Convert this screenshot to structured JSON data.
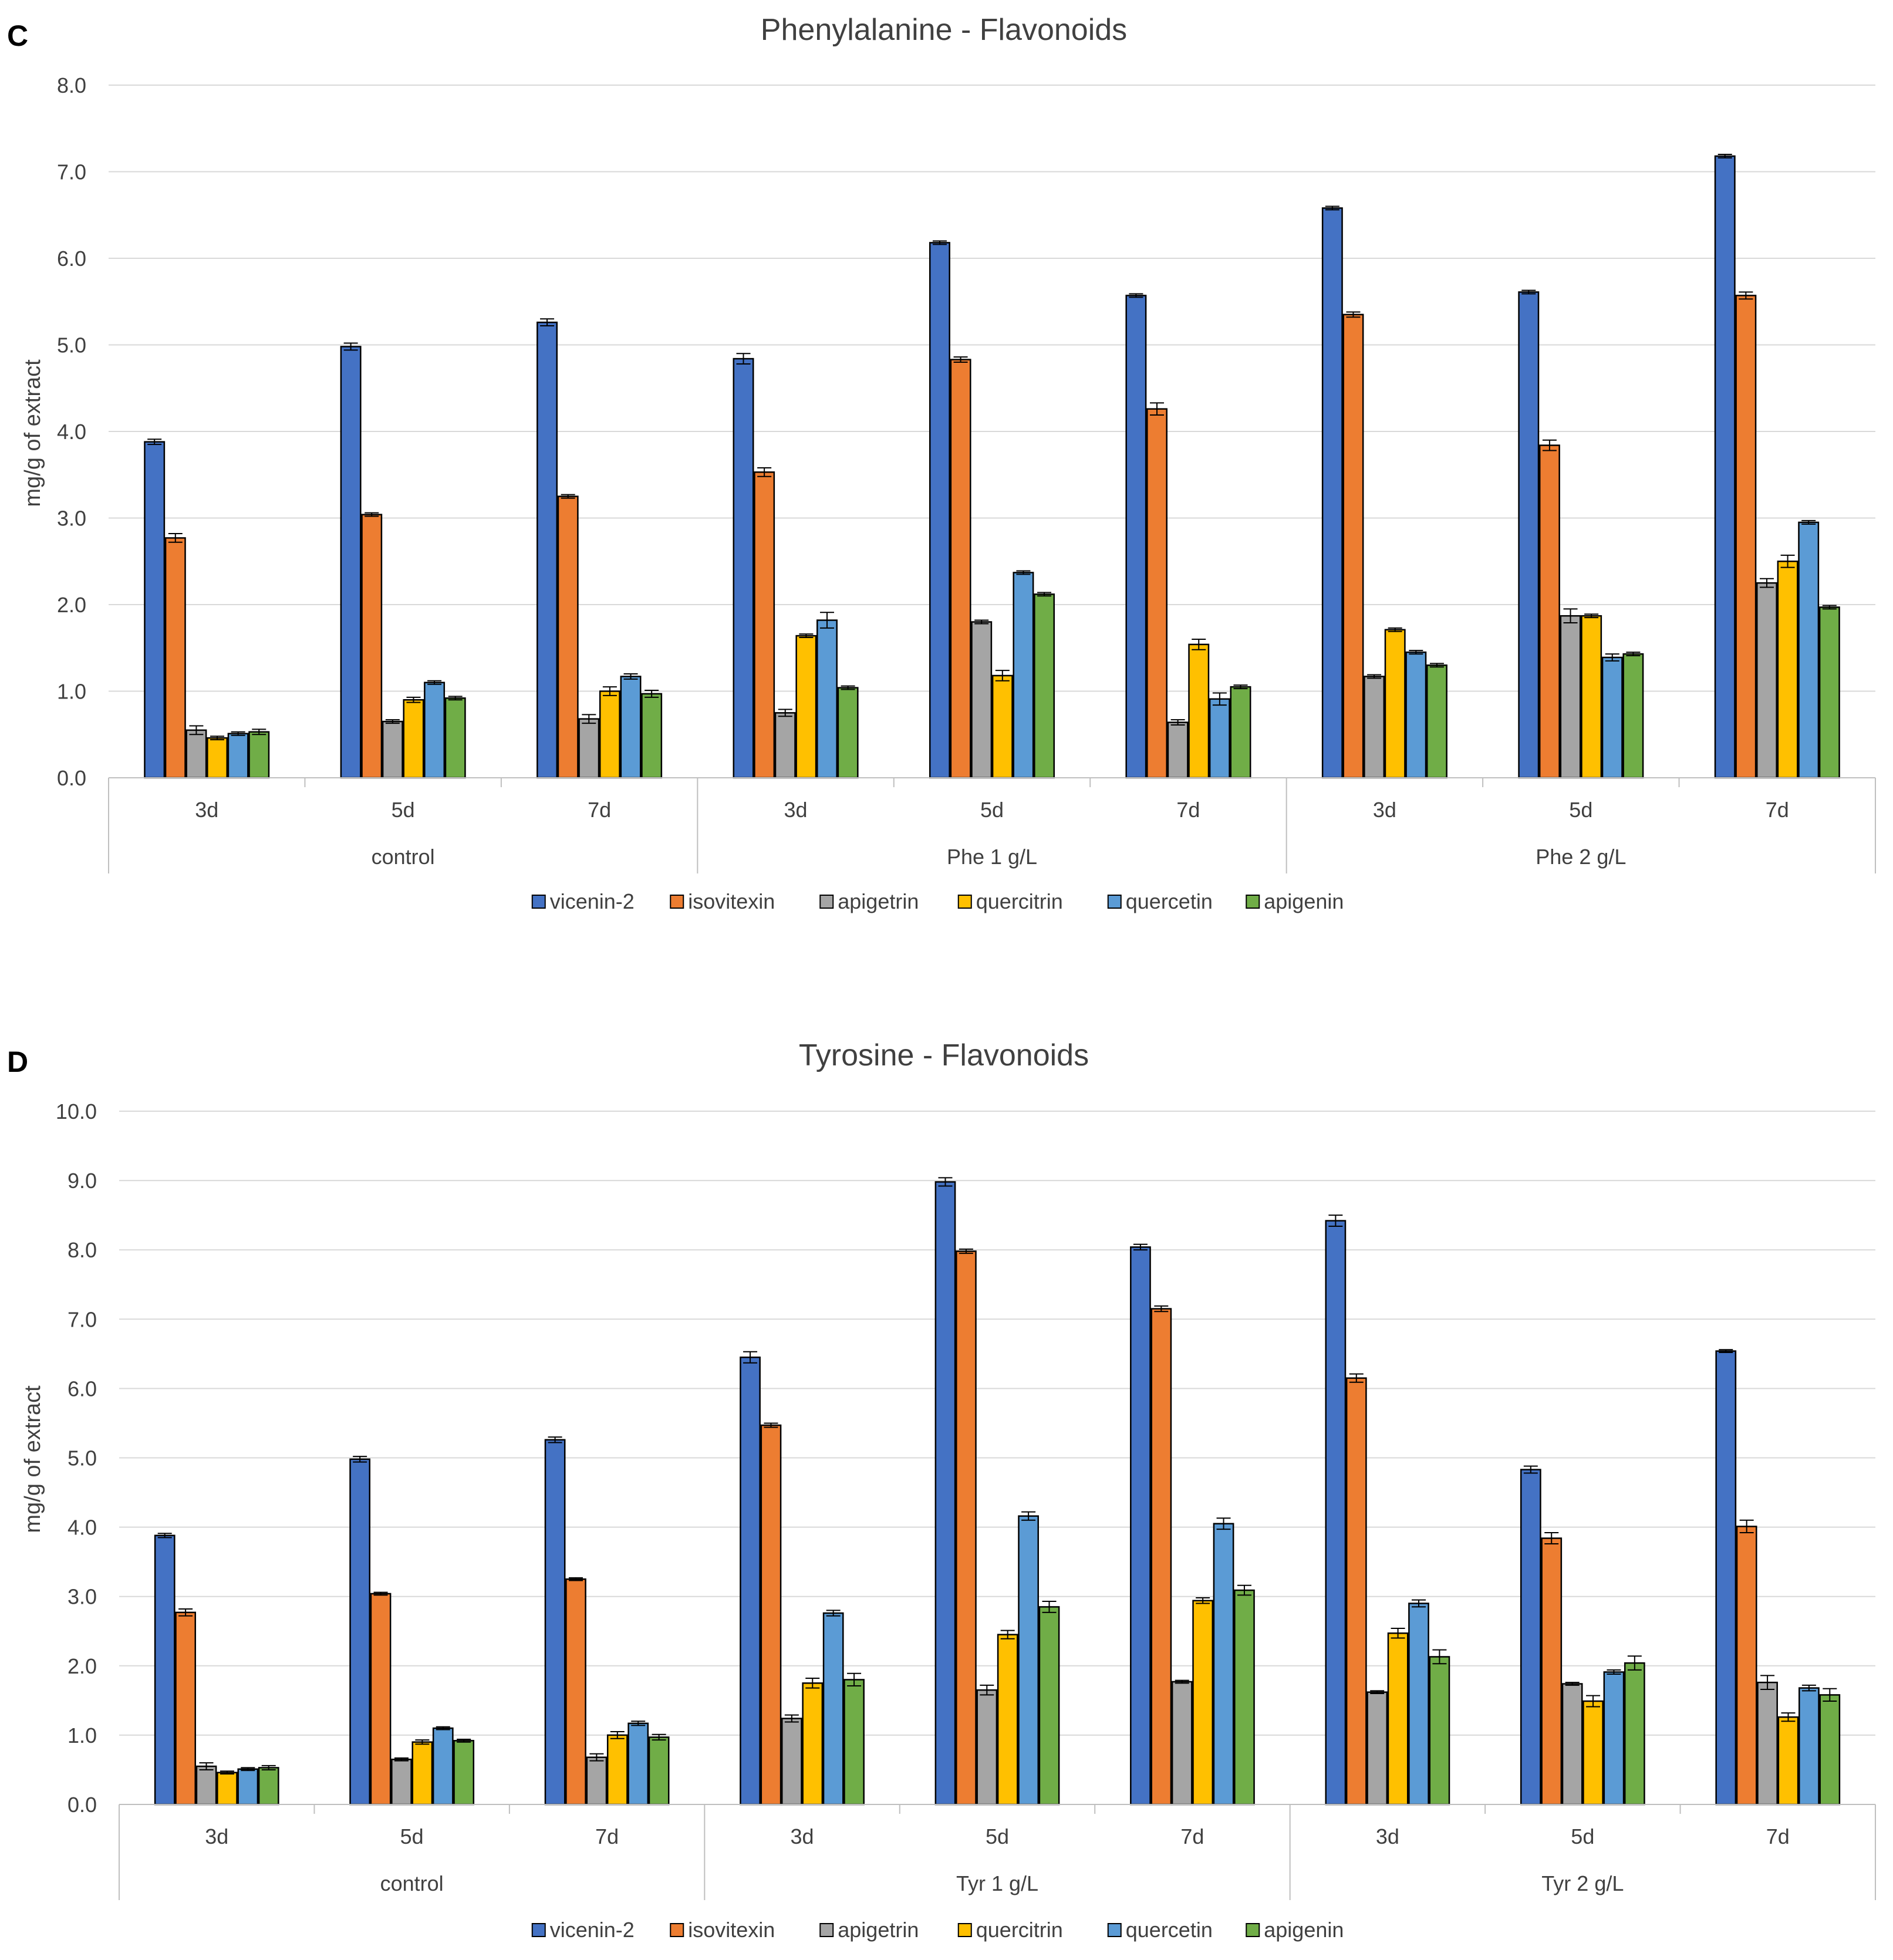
{
  "series_colors": {
    "vicenin-2": "#4472C4",
    "isovitexin": "#ED7D31",
    "apigetrin": "#A5A5A5",
    "quercitrin": "#FFC000",
    "quercetin": "#5B9BD5",
    "apigenin": "#70AD47"
  },
  "chart_data": [
    {
      "panel_label": "C",
      "type": "bar",
      "title": "Phenylalanine - Flavonoids",
      "ylabel": "mg/g of extract",
      "ylim": [
        0,
        8
      ],
      "ytick_labels": [
        "0.0",
        "1.0",
        "2.0",
        "3.0",
        "4.0",
        "5.0",
        "6.0",
        "7.0",
        "8.0"
      ],
      "groups": [
        "control",
        "Phe 1 g/L",
        "Phe 2 g/L"
      ],
      "categories": [
        "3d",
        "5d",
        "7d",
        "3d",
        "5d",
        "7d",
        "3d",
        "5d",
        "7d"
      ],
      "legend": [
        "vicenin-2",
        "isovitexin",
        "apigetrin",
        "quercitrin",
        "quercetin",
        "apigenin"
      ],
      "series": [
        {
          "name": "vicenin-2",
          "values": [
            3.88,
            4.98,
            5.26,
            4.84,
            6.18,
            5.57,
            6.58,
            5.61,
            7.18
          ],
          "errors": [
            0.03,
            0.04,
            0.04,
            0.06,
            0.02,
            0.02,
            0.02,
            0.02,
            0.02
          ]
        },
        {
          "name": "isovitexin",
          "values": [
            2.77,
            3.04,
            3.25,
            3.53,
            4.83,
            4.26,
            5.35,
            3.84,
            5.57
          ],
          "errors": [
            0.05,
            0.02,
            0.02,
            0.05,
            0.03,
            0.07,
            0.03,
            0.06,
            0.04
          ]
        },
        {
          "name": "apigetrin",
          "values": [
            0.55,
            0.65,
            0.68,
            0.75,
            1.8,
            0.64,
            1.17,
            1.87,
            2.25
          ],
          "errors": [
            0.05,
            0.02,
            0.05,
            0.04,
            0.02,
            0.03,
            0.02,
            0.08,
            0.05
          ]
        },
        {
          "name": "quercitrin",
          "values": [
            0.46,
            0.9,
            1.0,
            1.64,
            1.18,
            1.54,
            1.71,
            1.87,
            2.5
          ],
          "errors": [
            0.02,
            0.03,
            0.05,
            0.02,
            0.06,
            0.06,
            0.02,
            0.02,
            0.07
          ]
        },
        {
          "name": "quercetin",
          "values": [
            0.51,
            1.1,
            1.17,
            1.82,
            2.37,
            0.91,
            1.45,
            1.39,
            2.95
          ],
          "errors": [
            0.02,
            0.02,
            0.03,
            0.09,
            0.02,
            0.07,
            0.02,
            0.04,
            0.02
          ]
        },
        {
          "name": "apigenin",
          "values": [
            0.53,
            0.92,
            0.97,
            1.04,
            2.12,
            1.05,
            1.3,
            1.43,
            1.97
          ],
          "errors": [
            0.03,
            0.02,
            0.04,
            0.02,
            0.02,
            0.02,
            0.02,
            0.02,
            0.02
          ]
        }
      ]
    },
    {
      "panel_label": "D",
      "type": "bar",
      "title": "Tyrosine - Flavonoids",
      "ylabel": "mg/g of extract",
      "ylim": [
        0,
        10
      ],
      "ytick_labels": [
        "0.0",
        "1.0",
        "2.0",
        "3.0",
        "4.0",
        "5.0",
        "6.0",
        "7.0",
        "8.0",
        "9.0",
        "10.0"
      ],
      "groups": [
        "control",
        "Tyr 1 g/L",
        "Tyr 2 g/L"
      ],
      "categories": [
        "3d",
        "5d",
        "7d",
        "3d",
        "5d",
        "7d",
        "3d",
        "5d",
        "7d"
      ],
      "legend": [
        "vicenin-2",
        "isovitexin",
        "apigetrin",
        "quercitrin",
        "quercetin",
        "apigenin"
      ],
      "series": [
        {
          "name": "vicenin-2",
          "values": [
            3.88,
            4.98,
            5.26,
            6.45,
            8.98,
            8.04,
            8.42,
            4.83,
            6.54
          ],
          "errors": [
            0.03,
            0.04,
            0.04,
            0.08,
            0.06,
            0.04,
            0.08,
            0.05,
            0.02
          ]
        },
        {
          "name": "isovitexin",
          "values": [
            2.77,
            3.04,
            3.25,
            5.47,
            7.98,
            7.15,
            6.15,
            3.84,
            4.01
          ],
          "errors": [
            0.05,
            0.02,
            0.02,
            0.03,
            0.03,
            0.04,
            0.06,
            0.08,
            0.09
          ]
        },
        {
          "name": "apigetrin",
          "values": [
            0.55,
            0.65,
            0.68,
            1.24,
            1.65,
            1.77,
            1.62,
            1.74,
            1.76
          ],
          "errors": [
            0.05,
            0.02,
            0.05,
            0.05,
            0.07,
            0.02,
            0.02,
            0.02,
            0.1
          ]
        },
        {
          "name": "quercitrin",
          "values": [
            0.46,
            0.9,
            1.0,
            1.75,
            2.45,
            2.94,
            2.47,
            1.49,
            1.26
          ],
          "errors": [
            0.02,
            0.03,
            0.05,
            0.07,
            0.06,
            0.04,
            0.07,
            0.08,
            0.06
          ]
        },
        {
          "name": "quercetin",
          "values": [
            0.51,
            1.1,
            1.17,
            2.76,
            4.16,
            4.05,
            2.9,
            1.91,
            1.68
          ],
          "errors": [
            0.02,
            0.02,
            0.03,
            0.04,
            0.06,
            0.08,
            0.05,
            0.03,
            0.04
          ]
        },
        {
          "name": "apigenin",
          "values": [
            0.53,
            0.92,
            0.97,
            1.8,
            2.85,
            3.09,
            2.13,
            2.04,
            1.58
          ],
          "errors": [
            0.03,
            0.02,
            0.04,
            0.09,
            0.08,
            0.07,
            0.1,
            0.1,
            0.09
          ]
        }
      ]
    }
  ]
}
